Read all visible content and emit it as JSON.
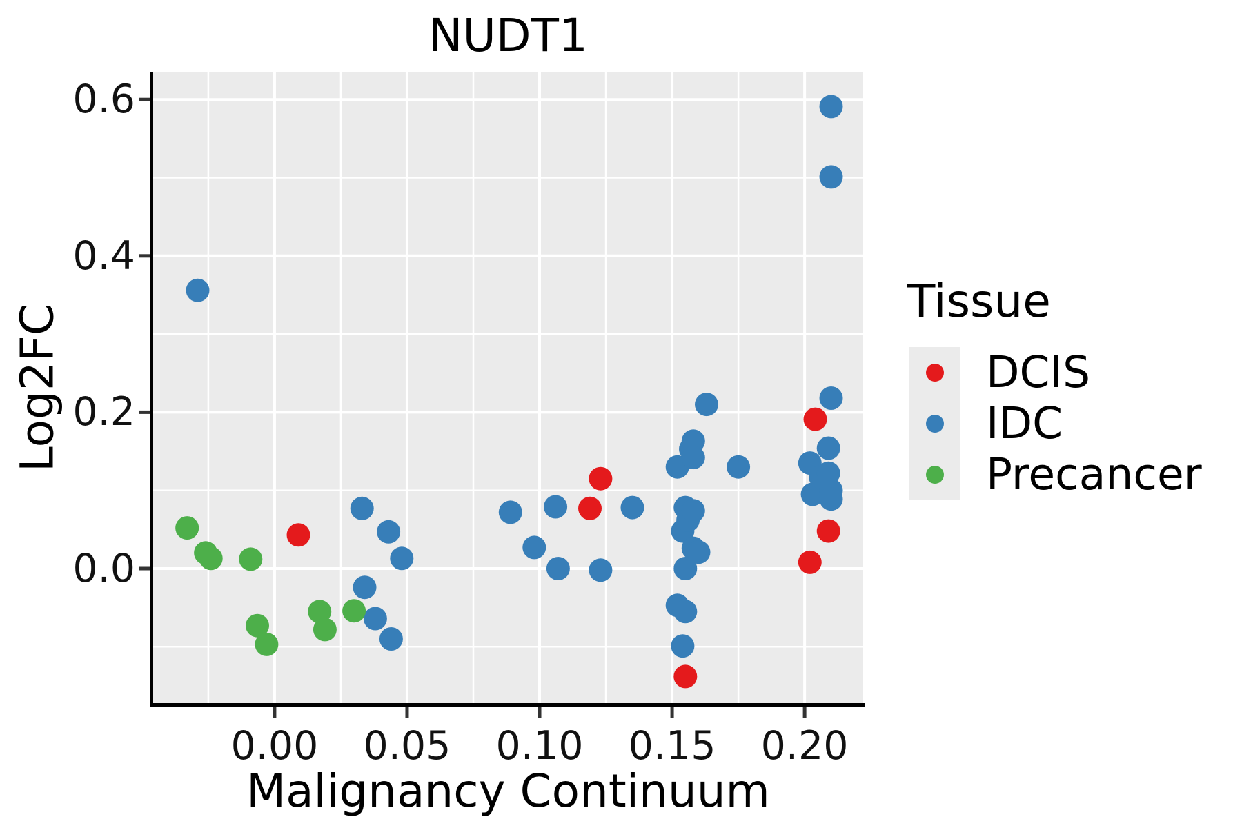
{
  "chart_data": {
    "type": "scatter",
    "title": "NUDT1",
    "xlabel": "Malignancy Continuum",
    "ylabel": "Log2FC",
    "xlim": [
      -0.0458,
      0.2221
    ],
    "ylim": [
      -0.1721,
      0.6346
    ],
    "x_ticks": {
      "values": [
        0.0,
        0.05,
        0.1,
        0.15,
        0.2
      ],
      "labels": [
        "0.00",
        "0.05",
        "0.10",
        "0.15",
        "0.20"
      ]
    },
    "y_ticks": {
      "values": [
        0.0,
        0.2,
        0.4,
        0.6
      ],
      "labels": [
        "0.0",
        "0.2",
        "0.4",
        "0.6"
      ]
    },
    "x_minor": [
      -0.025,
      0.025,
      0.075,
      0.125,
      0.175
    ],
    "y_minor": [
      -0.1,
      0.1,
      0.3,
      0.5
    ],
    "grid": true,
    "panel_color": "#EBEBEB",
    "grid_color": "#FFFFFF",
    "axis_color": "#000000",
    "tick_color": "#333333",
    "legend_position": "right",
    "series": [
      {
        "name": "DCIS",
        "color": "#E41A1C",
        "points": [
          [
            0.009,
            0.043
          ],
          [
            0.119,
            0.077
          ],
          [
            0.123,
            0.115
          ],
          [
            0.155,
            -0.138
          ],
          [
            0.204,
            0.191
          ],
          [
            0.209,
            0.048
          ],
          [
            0.202,
            0.008
          ]
        ]
      },
      {
        "name": "IDC",
        "color": "#377EB8",
        "points": [
          [
            -0.029,
            0.356
          ],
          [
            0.033,
            0.077
          ],
          [
            0.043,
            0.047
          ],
          [
            0.048,
            0.013
          ],
          [
            0.034,
            -0.024
          ],
          [
            0.038,
            -0.064
          ],
          [
            0.044,
            -0.09
          ],
          [
            0.089,
            0.072
          ],
          [
            0.098,
            0.027
          ],
          [
            0.106,
            0.079
          ],
          [
            0.107,
            0.0
          ],
          [
            0.123,
            -0.002
          ],
          [
            0.135,
            0.078
          ],
          [
            0.152,
            0.13
          ],
          [
            0.157,
            0.153
          ],
          [
            0.158,
            0.163
          ],
          [
            0.158,
            0.142
          ],
          [
            0.163,
            0.21
          ],
          [
            0.175,
            0.13
          ],
          [
            0.154,
            0.048
          ],
          [
            0.155,
            0.078
          ],
          [
            0.156,
            0.062
          ],
          [
            0.158,
            0.074
          ],
          [
            0.158,
            0.026
          ],
          [
            0.16,
            0.021
          ],
          [
            0.155,
            0.0
          ],
          [
            0.152,
            -0.047
          ],
          [
            0.155,
            -0.055
          ],
          [
            0.154,
            -0.099
          ],
          [
            0.202,
            0.135
          ],
          [
            0.203,
            0.095
          ],
          [
            0.206,
            0.117
          ],
          [
            0.209,
            0.154
          ],
          [
            0.209,
            0.122
          ],
          [
            0.21,
            0.591
          ],
          [
            0.21,
            0.501
          ],
          [
            0.21,
            0.218
          ],
          [
            0.21,
            0.1
          ],
          [
            0.21,
            0.089
          ]
        ]
      },
      {
        "name": "Precancer",
        "color": "#4DAF4A",
        "points": [
          [
            -0.033,
            0.052
          ],
          [
            -0.026,
            0.02
          ],
          [
            -0.024,
            0.013
          ],
          [
            -0.009,
            0.012
          ],
          [
            -0.0065,
            -0.073
          ],
          [
            -0.003,
            -0.097
          ],
          [
            0.017,
            -0.055
          ],
          [
            0.019,
            -0.078
          ],
          [
            0.03,
            -0.054
          ]
        ]
      }
    ],
    "legend": {
      "title": "Tissue",
      "entries": [
        {
          "label": "DCIS",
          "color": "#E41A1C"
        },
        {
          "label": "IDC",
          "color": "#377EB8"
        },
        {
          "label": "Precancer",
          "color": "#4DAF4A"
        }
      ]
    }
  }
}
